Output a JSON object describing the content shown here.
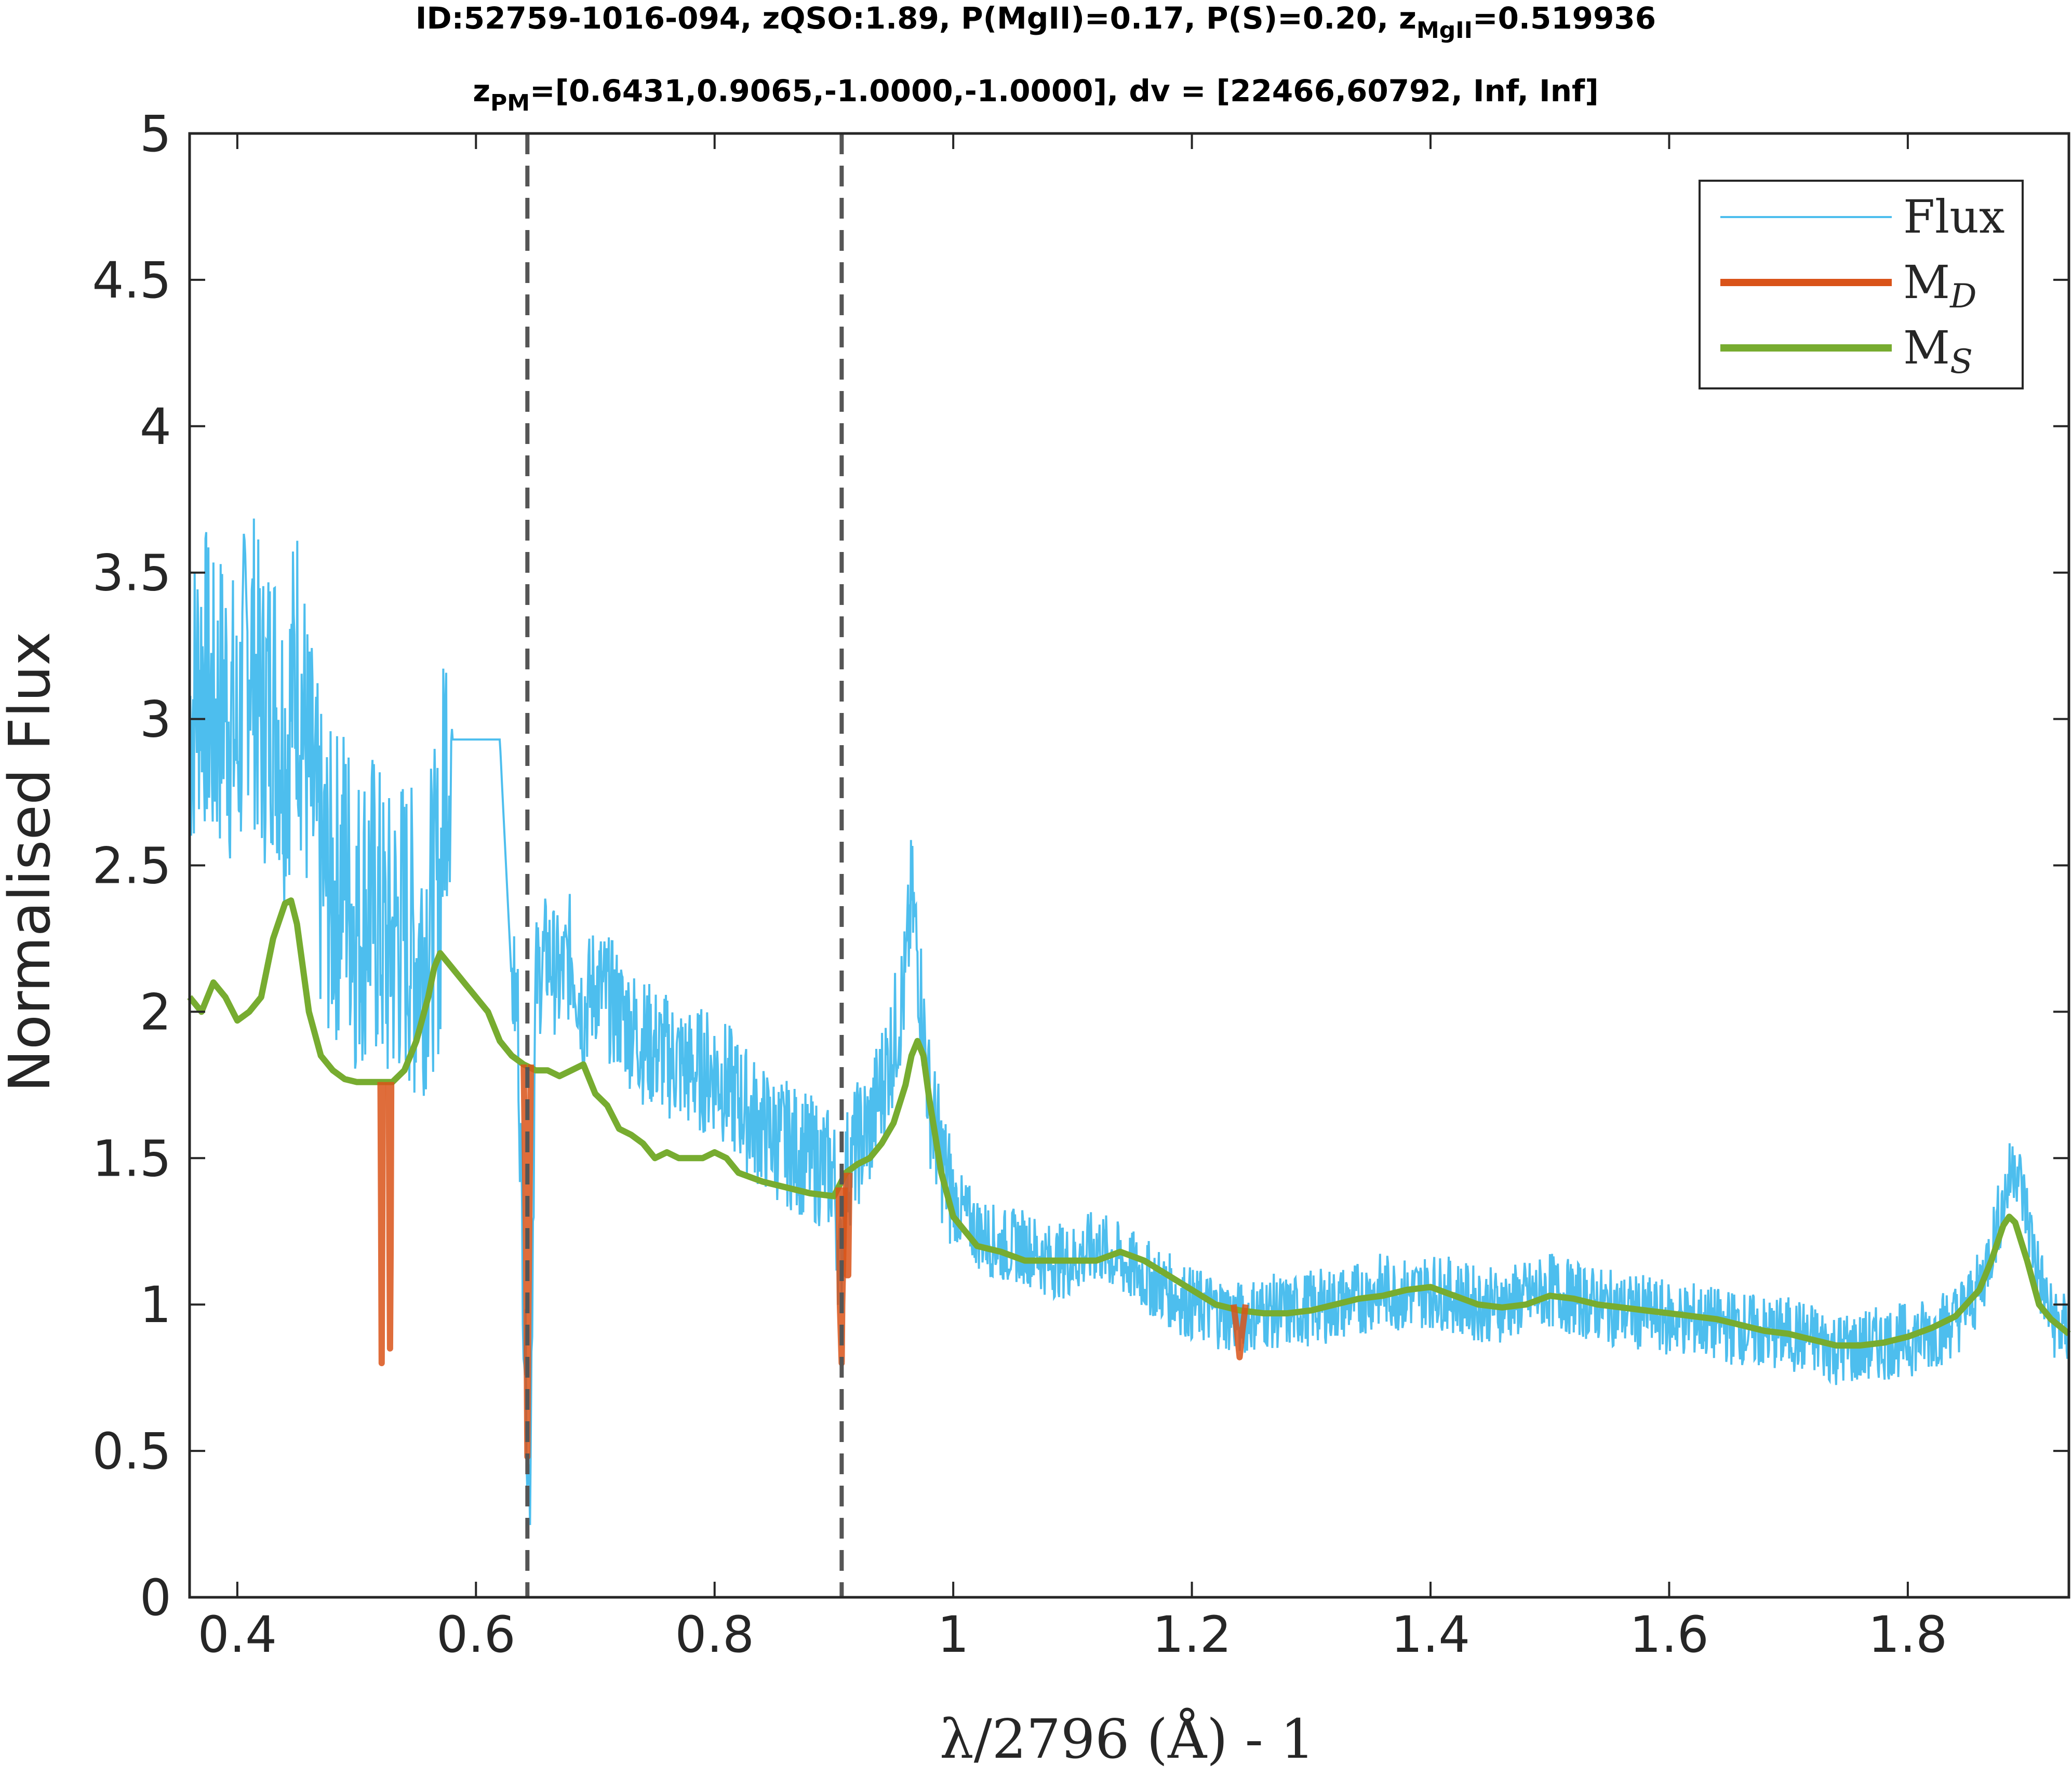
{
  "title": {
    "line1_main": "ID:52759-1016-094, zQSO:1.89, P(MgII)=0.17, P(S)=0.20, z",
    "line1_sub": "MgII",
    "line1_tail": "=0.519936",
    "line2_main": "z",
    "line2_sub": "PM",
    "line2_tail": "=[0.6431,0.9065,-1.0000,-1.0000], dv = [22466,60792, Inf, Inf]"
  },
  "colors": {
    "flux": "#4dbeee",
    "md": "#d95319",
    "ms": "#77ac30",
    "dashed": "#555555",
    "axis": "#262626"
  },
  "chart_data": {
    "type": "line",
    "xlabel": "λ/2796 (Å) - 1",
    "ylabel": "Normalised Flux",
    "xlim": [
      0.36,
      1.935
    ],
    "ylim": [
      0,
      5
    ],
    "x_ticks": [
      "0.4",
      "0.6",
      "0.8",
      "1",
      "1.2",
      "1.4",
      "1.6",
      "1.8"
    ],
    "x_tick_values": [
      0.4,
      0.6,
      0.8,
      1.0,
      1.2,
      1.4,
      1.6,
      1.8
    ],
    "y_ticks": [
      "0",
      "0.5",
      "1",
      "1.5",
      "2",
      "2.5",
      "3",
      "3.5",
      "4",
      "4.5",
      "5"
    ],
    "y_tick_values": [
      0,
      0.5,
      1,
      1.5,
      2,
      2.5,
      3,
      3.5,
      4,
      4.5,
      5
    ],
    "grid": false,
    "legend_position": "top-right",
    "vertical_lines": [
      0.6431,
      0.9065
    ],
    "series": [
      {
        "name": "Flux",
        "style": "thin",
        "x": [
          0.36,
          0.37,
          0.38,
          0.39,
          0.4,
          0.41,
          0.42,
          0.43,
          0.44,
          0.45,
          0.46,
          0.47,
          0.48,
          0.49,
          0.5,
          0.51,
          0.52,
          0.525,
          0.53,
          0.54,
          0.55,
          0.56,
          0.57,
          0.575,
          0.58,
          0.59,
          0.6,
          0.61,
          0.62,
          0.63,
          0.635,
          0.64,
          0.645,
          0.65,
          0.66,
          0.67,
          0.68,
          0.69,
          0.7,
          0.72,
          0.74,
          0.76,
          0.78,
          0.8,
          0.82,
          0.84,
          0.86,
          0.88,
          0.9,
          0.905,
          0.91,
          0.92,
          0.93,
          0.94,
          0.95,
          0.96,
          0.965,
          0.97,
          0.98,
          0.99,
          1.0,
          1.02,
          1.04,
          1.06,
          1.08,
          1.1,
          1.12,
          1.14,
          1.16,
          1.18,
          1.2,
          1.22,
          1.24,
          1.26,
          1.28,
          1.3,
          1.32,
          1.34,
          1.36,
          1.38,
          1.4,
          1.42,
          1.44,
          1.46,
          1.48,
          1.5,
          1.52,
          1.54,
          1.56,
          1.58,
          1.6,
          1.62,
          1.64,
          1.66,
          1.68,
          1.7,
          1.72,
          1.74,
          1.76,
          1.78,
          1.8,
          1.82,
          1.84,
          1.86,
          1.87,
          1.88,
          1.89,
          1.9,
          1.91,
          1.92,
          1.935
        ],
        "y": [
          3.0,
          3.2,
          3.0,
          3.1,
          2.9,
          3.3,
          3.0,
          3.1,
          2.9,
          3.2,
          2.8,
          2.5,
          2.4,
          2.5,
          2.3,
          2.4,
          2.3,
          2.2,
          2.25,
          2.3,
          2.2,
          2.3,
          2.4,
          2.93,
          2.93,
          2.93,
          2.93,
          2.93,
          2.93,
          2.1,
          2.0,
          1.0,
          0.3,
          2.1,
          2.2,
          2.1,
          2.2,
          2.0,
          2.1,
          2.0,
          1.9,
          1.85,
          1.8,
          1.8,
          1.7,
          1.6,
          1.55,
          1.5,
          1.45,
          1.1,
          1.45,
          1.55,
          1.6,
          1.75,
          1.9,
          2.1,
          2.4,
          2.2,
          1.7,
          1.5,
          1.35,
          1.25,
          1.2,
          1.2,
          1.15,
          1.15,
          1.2,
          1.15,
          1.1,
          1.05,
          1.0,
          0.98,
          0.95,
          0.98,
          0.97,
          0.99,
          1.0,
          1.02,
          1.05,
          1.03,
          1.05,
          1.03,
          1.0,
          1.0,
          1.02,
          1.05,
          1.02,
          1.0,
          0.98,
          0.97,
          0.95,
          0.95,
          0.93,
          0.92,
          0.9,
          0.9,
          0.88,
          0.85,
          0.85,
          0.87,
          0.88,
          0.9,
          0.95,
          1.05,
          1.2,
          1.35,
          1.5,
          1.3,
          1.1,
          0.95,
          0.9
        ]
      },
      {
        "name": "M_D",
        "style": "thick",
        "segments": [
          {
            "x": [
              0.52,
              0.5205,
              0.521,
              0.5215,
              0.522
            ],
            "y": [
              1.76,
              1.3,
              0.8,
              1.3,
              1.76
            ]
          },
          {
            "x": [
              0.527,
              0.5275,
              0.528,
              0.5285,
              0.529
            ],
            "y": [
              1.76,
              1.2,
              0.85,
              1.2,
              1.76
            ]
          },
          {
            "x": [
              0.64,
              0.642,
              0.6431,
              0.644,
              0.646
            ],
            "y": [
              1.82,
              1.2,
              0.48,
              1.0,
              1.82
            ]
          },
          {
            "x": [
              0.904,
              0.905,
              0.9065,
              0.907,
              0.909
            ],
            "y": [
              1.4,
              1.0,
              0.8,
              1.0,
              1.4
            ]
          },
          {
            "x": [
              0.91,
              0.911,
              0.912,
              0.913
            ],
            "y": [
              1.45,
              1.1,
              1.1,
              1.45
            ]
          },
          {
            "x": [
              1.235,
              1.238,
              1.24,
              1.242,
              1.245
            ],
            "y": [
              1.0,
              0.9,
              0.82,
              0.9,
              1.0
            ]
          }
        ]
      },
      {
        "name": "M_S",
        "style": "thick",
        "x": [
          0.36,
          0.37,
          0.38,
          0.39,
          0.4,
          0.41,
          0.42,
          0.43,
          0.44,
          0.445,
          0.45,
          0.46,
          0.47,
          0.48,
          0.49,
          0.5,
          0.51,
          0.52,
          0.53,
          0.54,
          0.55,
          0.56,
          0.565,
          0.57,
          0.58,
          0.59,
          0.6,
          0.61,
          0.62,
          0.63,
          0.64,
          0.65,
          0.66,
          0.67,
          0.68,
          0.69,
          0.7,
          0.71,
          0.72,
          0.73,
          0.74,
          0.75,
          0.76,
          0.77,
          0.78,
          0.79,
          0.8,
          0.81,
          0.82,
          0.84,
          0.86,
          0.88,
          0.9,
          0.91,
          0.92,
          0.93,
          0.94,
          0.95,
          0.96,
          0.965,
          0.97,
          0.975,
          0.98,
          0.99,
          1.0,
          1.02,
          1.04,
          1.06,
          1.08,
          1.1,
          1.12,
          1.14,
          1.16,
          1.18,
          1.2,
          1.22,
          1.24,
          1.26,
          1.28,
          1.3,
          1.32,
          1.34,
          1.36,
          1.38,
          1.4,
          1.42,
          1.44,
          1.46,
          1.48,
          1.5,
          1.52,
          1.54,
          1.56,
          1.58,
          1.6,
          1.62,
          1.64,
          1.66,
          1.68,
          1.7,
          1.72,
          1.74,
          1.76,
          1.78,
          1.8,
          1.82,
          1.84,
          1.86,
          1.87,
          1.88,
          1.885,
          1.89,
          1.9,
          1.91,
          1.92,
          1.935
        ],
        "y": [
          2.05,
          2.0,
          2.1,
          2.05,
          1.97,
          2.0,
          2.05,
          2.25,
          2.37,
          2.38,
          2.3,
          2.0,
          1.85,
          1.8,
          1.77,
          1.76,
          1.76,
          1.76,
          1.76,
          1.8,
          1.9,
          2.05,
          2.15,
          2.2,
          2.15,
          2.1,
          2.05,
          2.0,
          1.9,
          1.85,
          1.82,
          1.8,
          1.8,
          1.78,
          1.8,
          1.82,
          1.72,
          1.68,
          1.6,
          1.58,
          1.55,
          1.5,
          1.52,
          1.5,
          1.5,
          1.5,
          1.52,
          1.5,
          1.45,
          1.42,
          1.4,
          1.38,
          1.37,
          1.45,
          1.48,
          1.5,
          1.55,
          1.62,
          1.75,
          1.85,
          1.9,
          1.85,
          1.7,
          1.45,
          1.3,
          1.2,
          1.18,
          1.15,
          1.15,
          1.15,
          1.15,
          1.18,
          1.15,
          1.1,
          1.05,
          1.0,
          0.98,
          0.97,
          0.97,
          0.98,
          1.0,
          1.02,
          1.03,
          1.05,
          1.06,
          1.03,
          1.0,
          0.99,
          1.0,
          1.03,
          1.02,
          1.0,
          0.99,
          0.98,
          0.97,
          0.96,
          0.95,
          0.93,
          0.91,
          0.9,
          0.88,
          0.86,
          0.86,
          0.87,
          0.89,
          0.92,
          0.96,
          1.05,
          1.15,
          1.27,
          1.3,
          1.28,
          1.15,
          1.0,
          0.95,
          0.9
        ]
      }
    ],
    "legend": [
      "Flux",
      "M",
      "M"
    ],
    "legend_subscripts": [
      "",
      "D",
      "S"
    ]
  }
}
